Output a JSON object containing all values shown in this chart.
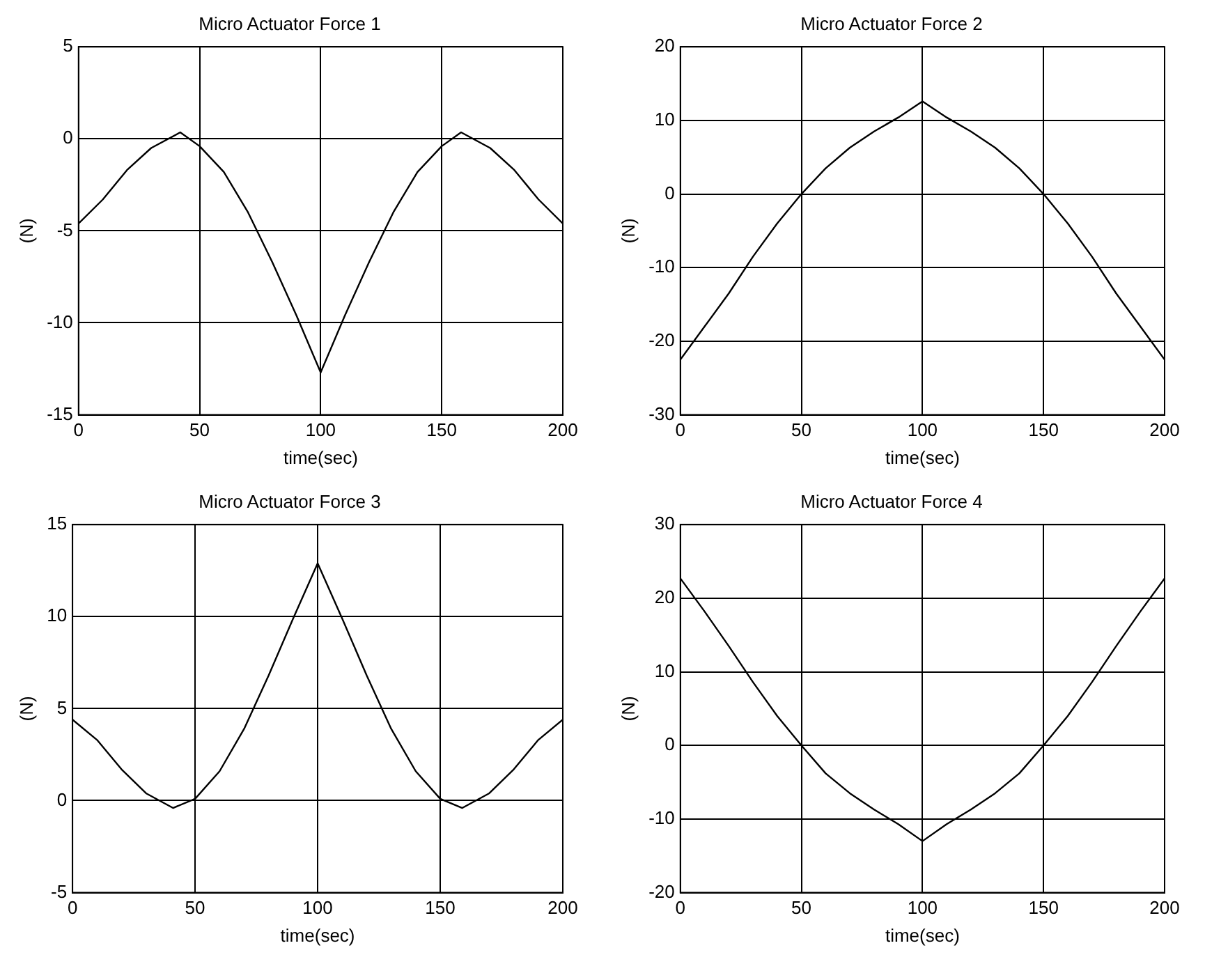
{
  "chart_data": [
    {
      "type": "line",
      "title": "Micro Actuator Force 1",
      "xlabel": "time(sec)",
      "ylabel": "(N)",
      "x": [
        0,
        10,
        20,
        30,
        42,
        50,
        60,
        70,
        80,
        90,
        100,
        110,
        120,
        130,
        140,
        150,
        158,
        170,
        180,
        190,
        200
      ],
      "series": [
        {
          "color": "#000000",
          "values": [
            -4.6,
            -3.3,
            -1.7,
            -0.5,
            0.35,
            -0.4,
            -1.8,
            -4,
            -6.7,
            -9.6,
            -12.7,
            -9.6,
            -6.7,
            -4,
            -1.8,
            -0.4,
            0.35,
            -0.5,
            -1.7,
            -3.3,
            -4.6
          ]
        }
      ],
      "xlim": [
        0,
        200
      ],
      "xticks": [
        0,
        50,
        100,
        150,
        200
      ],
      "ylim": [
        -15,
        5
      ],
      "yticks": [
        -15,
        -10,
        -5,
        0,
        5
      ],
      "grid": true,
      "legend": false,
      "marker": "none",
      "line_style": "solid"
    },
    {
      "type": "line",
      "title": "Micro Actuator Force 2",
      "xlabel": "time(sec)",
      "ylabel": "(N)",
      "x": [
        0,
        10,
        20,
        30,
        40,
        50,
        60,
        70,
        80,
        90,
        100,
        110,
        120,
        130,
        140,
        150,
        160,
        170,
        180,
        190,
        200
      ],
      "series": [
        {
          "color": "#000000",
          "values": [
            -22.5,
            -18,
            -13.5,
            -8.5,
            -4,
            0,
            3.5,
            6.3,
            8.5,
            10.4,
            12.6,
            10.4,
            8.5,
            6.3,
            3.5,
            0,
            -4,
            -8.5,
            -13.5,
            -18,
            -22.5
          ]
        }
      ],
      "xlim": [
        0,
        200
      ],
      "xticks": [
        0,
        50,
        100,
        150,
        200
      ],
      "ylim": [
        -30,
        20
      ],
      "yticks": [
        -30,
        -20,
        -10,
        0,
        10,
        20
      ],
      "grid": true,
      "legend": false,
      "marker": "none",
      "line_style": "solid"
    },
    {
      "type": "line",
      "title": "Micro Actuator Force 3",
      "xlabel": "time(sec)",
      "ylabel": "(N)",
      "x": [
        0,
        10,
        20,
        30,
        41,
        50,
        60,
        70,
        80,
        90,
        100,
        110,
        120,
        130,
        140,
        150,
        159,
        170,
        180,
        190,
        200
      ],
      "series": [
        {
          "color": "#000000",
          "values": [
            4.4,
            3.3,
            1.7,
            0.4,
            -0.4,
            0.1,
            1.6,
            3.9,
            6.8,
            9.9,
            12.9,
            9.9,
            6.8,
            3.9,
            1.6,
            0.1,
            -0.4,
            0.4,
            1.7,
            3.3,
            4.4
          ]
        }
      ],
      "xlim": [
        0,
        200
      ],
      "xticks": [
        0,
        50,
        100,
        150,
        200
      ],
      "ylim": [
        -5,
        15
      ],
      "yticks": [
        -5,
        0,
        5,
        10,
        15
      ],
      "grid": true,
      "legend": false,
      "marker": "none",
      "line_style": "solid"
    },
    {
      "type": "line",
      "title": "Micro Actuator Force 4",
      "xlabel": "time(sec)",
      "ylabel": "(N)",
      "x": [
        0,
        10,
        20,
        30,
        40,
        50,
        60,
        70,
        80,
        90,
        100,
        110,
        120,
        130,
        140,
        150,
        160,
        170,
        180,
        190,
        200
      ],
      "series": [
        {
          "color": "#000000",
          "values": [
            22.7,
            18.2,
            13.5,
            8.6,
            4,
            0,
            -3.8,
            -6.5,
            -8.7,
            -10.7,
            -13,
            -10.7,
            -8.7,
            -6.5,
            -3.8,
            0,
            4,
            8.6,
            13.5,
            18.2,
            22.7
          ]
        }
      ],
      "xlim": [
        0,
        200
      ],
      "xticks": [
        0,
        50,
        100,
        150,
        200
      ],
      "ylim": [
        -20,
        30
      ],
      "yticks": [
        -20,
        -10,
        0,
        10,
        20,
        30
      ],
      "grid": true,
      "legend": false,
      "marker": "none",
      "line_style": "solid"
    }
  ]
}
